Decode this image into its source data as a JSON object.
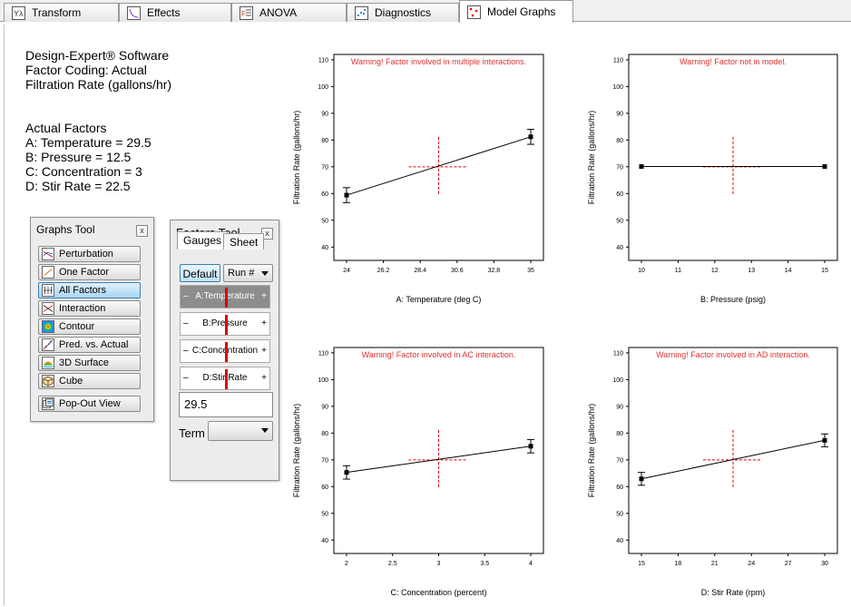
{
  "tabs": [
    {
      "label": "Transform",
      "icon": "transform-icon"
    },
    {
      "label": "Effects",
      "icon": "effects-icon"
    },
    {
      "label": "ANOVA",
      "icon": "anova-icon"
    },
    {
      "label": "Diagnostics",
      "icon": "diagnostics-icon"
    },
    {
      "label": "Model Graphs",
      "icon": "model-graphs-icon",
      "active": true
    }
  ],
  "info": {
    "line1": "Design-Expert® Software",
    "line2": "Factor Coding: Actual",
    "line3": "Filtration Rate (gallons/hr)",
    "actual_header": "Actual Factors",
    "a": "A: Temperature = 29.5",
    "b": "B: Pressure = 12.5",
    "c": "C: Concentration = 3",
    "d": "D: Stir Rate = 22.5"
  },
  "graphs_tool": {
    "title": "Graphs Tool",
    "close": "x",
    "buttons": [
      {
        "label": "Perturbation",
        "icon": "perturbation-icon"
      },
      {
        "label": "One Factor",
        "icon": "one-factor-icon"
      },
      {
        "label": "All Factors",
        "icon": "all-factors-icon",
        "selected": true
      },
      {
        "label": "Interaction",
        "icon": "interaction-icon"
      },
      {
        "label": "Contour",
        "icon": "contour-icon"
      },
      {
        "label": "Pred. vs. Actual",
        "icon": "pred-vs-actual-icon"
      },
      {
        "label": "3D Surface",
        "icon": "3d-surface-icon"
      },
      {
        "label": "Cube",
        "icon": "cube-icon"
      }
    ],
    "popout": "Pop-Out View"
  },
  "factors_tool": {
    "title": "Factors Tool",
    "close": "x",
    "tab_gauges": "Gauges",
    "tab_sheet": "Sheet",
    "default_label": "Default",
    "run_combo": "Run #",
    "gauges": [
      {
        "label": "A:Temperature",
        "level": 0.5,
        "selected": true
      },
      {
        "label": "B:Pressure",
        "level": 0.5
      },
      {
        "label": "C:Concentration",
        "level": 0.5
      },
      {
        "label": "D:Stir Rate",
        "level": 0.5
      }
    ],
    "minus": "–",
    "plus": "+",
    "value": "29.5",
    "term_label": "Term",
    "term_value": ""
  },
  "chart_data": [
    {
      "type": "line",
      "warning": "Warning! Factor involved in multiple interactions.",
      "xlabel": "A: Temperature (deg C)",
      "ylabel": "Filtration Rate (gallons/hr)",
      "xlim": [
        24,
        35
      ],
      "ylim": [
        35,
        112
      ],
      "x_ticks": [
        "24",
        "26.2",
        "28.4",
        "30.6",
        "32.8",
        "35"
      ],
      "y_ticks": [
        "40",
        "50",
        "60",
        "70",
        "80",
        "90",
        "100",
        "110"
      ],
      "x": [
        24,
        35
      ],
      "y": [
        59.4,
        81.2
      ],
      "err": [
        2.8,
        2.8
      ],
      "ref_x": 29.5,
      "ref_y": 70
    },
    {
      "type": "line",
      "warning": "Warning! Factor not in model.",
      "xlabel": "B: Pressure (psig)",
      "ylabel": "Filtration Rate (gallons/hr)",
      "xlim": [
        10,
        15
      ],
      "ylim": [
        35,
        112
      ],
      "x_ticks": [
        "10",
        "11",
        "12",
        "13",
        "14",
        "15"
      ],
      "y_ticks": [
        "40",
        "50",
        "60",
        "70",
        "80",
        "90",
        "100",
        "110"
      ],
      "x": [
        10,
        15
      ],
      "y": [
        70.1,
        70.1
      ],
      "err": [
        0,
        0
      ],
      "ref_x": 12.5,
      "ref_y": 70
    },
    {
      "type": "line",
      "warning": "Warning! Factor involved in AC interaction.",
      "xlabel": "C: Concentration (percent)",
      "ylabel": "Filtration Rate (gallons/hr)",
      "xlim": [
        2,
        4
      ],
      "ylim": [
        35,
        112
      ],
      "x_ticks": [
        "2",
        "2.5",
        "3",
        "3.5",
        "4"
      ],
      "y_ticks": [
        "40",
        "50",
        "60",
        "70",
        "80",
        "90",
        "100",
        "110"
      ],
      "x": [
        2,
        4
      ],
      "y": [
        65.3,
        75.1
      ],
      "err": [
        2.5,
        2.5
      ],
      "ref_x": 3,
      "ref_y": 70
    },
    {
      "type": "line",
      "warning": "Warning! Factor involved in AD interaction.",
      "xlabel": "D: Stir Rate (rpm)",
      "ylabel": "Filtration Rate (gallons/hr)",
      "xlim": [
        15,
        30
      ],
      "ylim": [
        35,
        112
      ],
      "x_ticks": [
        "15",
        "18",
        "21",
        "24",
        "27",
        "30"
      ],
      "y_ticks": [
        "40",
        "50",
        "60",
        "70",
        "80",
        "90",
        "100",
        "110"
      ],
      "x": [
        15,
        30
      ],
      "y": [
        62.9,
        77.3
      ],
      "err": [
        2.4,
        2.4
      ],
      "ref_x": 22.5,
      "ref_y": 70
    }
  ]
}
